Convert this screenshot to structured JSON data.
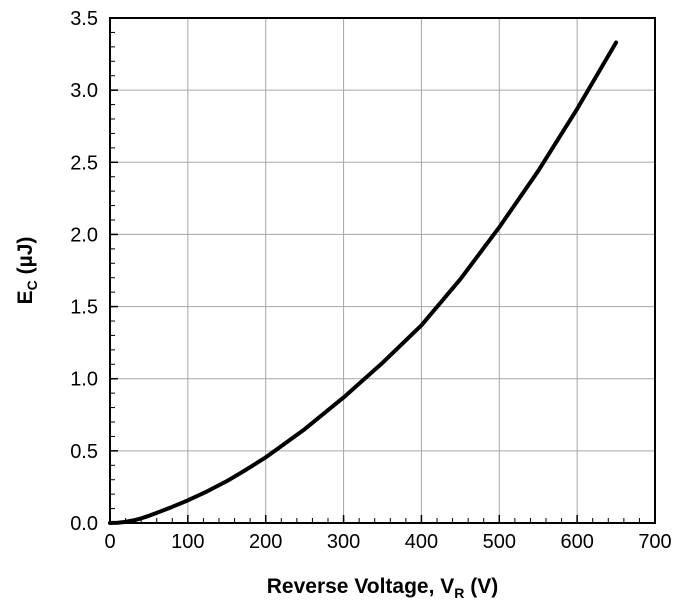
{
  "chart_data": {
    "type": "line",
    "title": "",
    "xlabel": {
      "main": "Reverse Voltage, V",
      "sub": "R",
      "tail": " (V)"
    },
    "ylabel": {
      "main": "E",
      "sub": "C",
      "tail": " (µJ)"
    },
    "xlim": [
      0,
      700
    ],
    "ylim": [
      0,
      3.5
    ],
    "xticks": [
      "0",
      "100",
      "200",
      "300",
      "400",
      "500",
      "600",
      "700"
    ],
    "yticks": [
      "0.0",
      "0.5",
      "1.0",
      "1.5",
      "2.0",
      "2.5",
      "3.0",
      "3.5"
    ],
    "grid": true,
    "line_color": "#000000",
    "grid_color": "#a6a6a6",
    "series": [
      {
        "x": [
          0,
          10,
          20,
          30,
          40,
          50,
          60,
          80,
          100,
          125,
          150,
          175,
          200,
          250,
          300,
          350,
          400,
          450,
          500,
          550,
          600,
          650
        ],
        "y": [
          0,
          0.002,
          0.008,
          0.018,
          0.032,
          0.05,
          0.07,
          0.112,
          0.157,
          0.22,
          0.29,
          0.37,
          0.455,
          0.65,
          0.87,
          1.11,
          1.37,
          1.69,
          2.05,
          2.44,
          2.87,
          3.33
        ]
      }
    ]
  }
}
